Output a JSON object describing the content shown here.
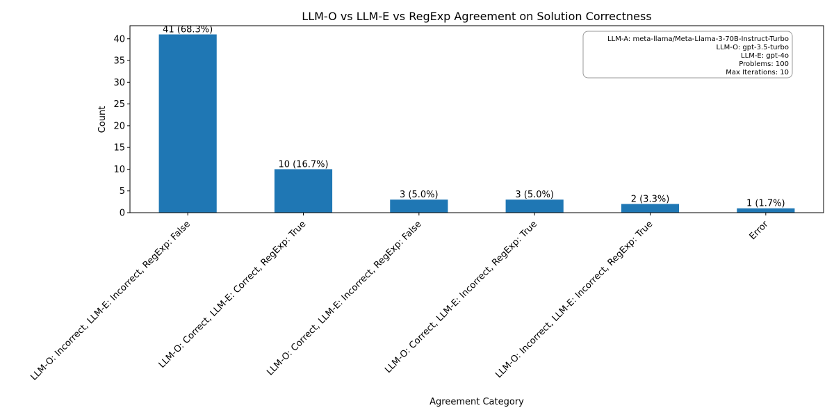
{
  "chart_data": {
    "type": "bar",
    "title": "LLM-O vs LLM-E vs RegExp Agreement on Solution Correctness",
    "xlabel": "Agreement Category",
    "ylabel": "Count",
    "categories": [
      "LLM-O: Incorrect, LLM-E: Incorrect, RegExp: False",
      "LLM-O: Correct, LLM-E: Correct, RegExp: True",
      "LLM-O: Correct, LLM-E: Incorrect, RegExp: False",
      "LLM-O: Correct, LLM-E: Incorrect, RegExp: True",
      "LLM-O: Incorrect, LLM-E: Incorrect, RegExp: True",
      "Error"
    ],
    "values": [
      41,
      10,
      3,
      3,
      2,
      1
    ],
    "data_labels": [
      "41 (68.3%)",
      "10 (16.7%)",
      "3 (5.0%)",
      "3 (5.0%)",
      "2 (3.3%)",
      "1 (1.7%)"
    ],
    "ylim": [
      0,
      43
    ],
    "yticks": [
      0,
      5,
      10,
      15,
      20,
      25,
      30,
      35,
      40
    ],
    "grid": false,
    "bar_color": "#1f77b4",
    "info_box": {
      "placement": "top-right",
      "lines": [
        "LLM-A: meta-llama/Meta-Llama-3-70B-Instruct-Turbo",
        "LLM-O: gpt-3.5-turbo",
        "LLM-E: gpt-4o",
        "Problems: 100",
        "Max Iterations: 10"
      ]
    }
  }
}
